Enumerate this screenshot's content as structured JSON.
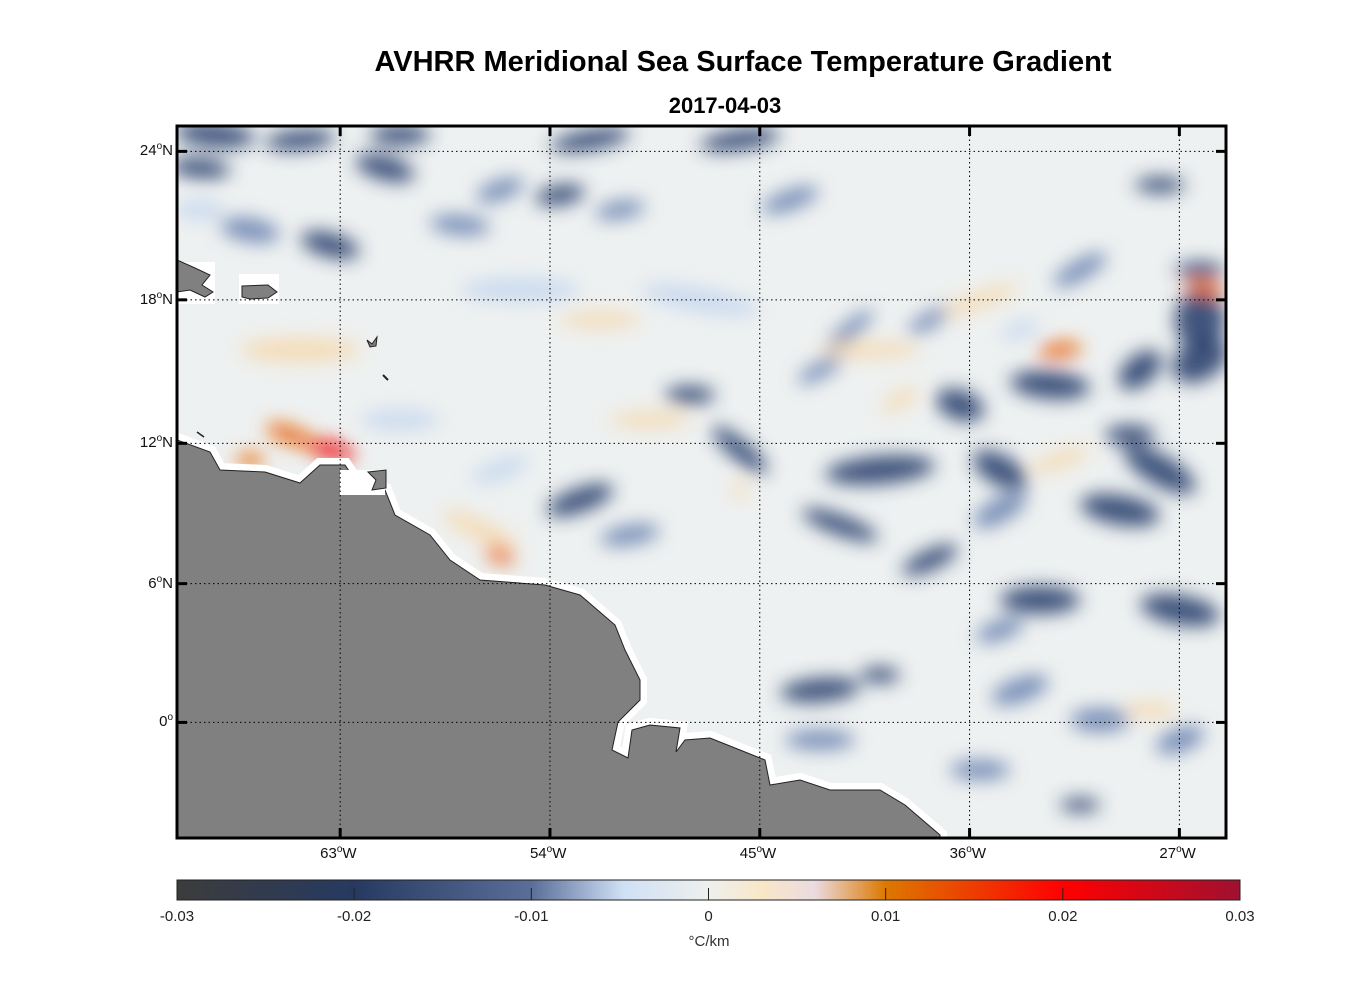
{
  "title": "AVHRR Meridional Sea Surface Temperature Gradient",
  "subtitle": "2017-04-03",
  "chart_data": {
    "type": "heatmap",
    "title": "AVHRR Meridional Sea Surface Temperature Gradient",
    "subtitle": "2017-04-03",
    "lon_range": [
      -70,
      -25
    ],
    "lat_range": [
      -5,
      25
    ],
    "lat_ticks": [
      {
        "value": 24,
        "deg": "24",
        "hemi": "N"
      },
      {
        "value": 18,
        "deg": "18",
        "hemi": "N"
      },
      {
        "value": 12,
        "deg": "12",
        "hemi": "N"
      },
      {
        "value": 6,
        "deg": "6",
        "hemi": "N"
      },
      {
        "value": 0,
        "deg": "0",
        "hemi": ""
      }
    ],
    "lon_ticks": [
      {
        "value": -63,
        "deg": "63",
        "hemi": "W"
      },
      {
        "value": -54,
        "deg": "54",
        "hemi": "W"
      },
      {
        "value": -45,
        "deg": "45",
        "hemi": "W"
      },
      {
        "value": -36,
        "deg": "36",
        "hemi": "W"
      },
      {
        "value": -27,
        "deg": "27",
        "hemi": "W"
      }
    ],
    "grid": true,
    "land_color": "#808080",
    "colorbar": {
      "location": "bottom",
      "range": [
        -0.03,
        0.03
      ],
      "ticks": [
        "-0.03",
        "-0.02",
        "-0.01",
        "0",
        "0.01",
        "0.02",
        "0.03"
      ],
      "label": "°C/km",
      "colors": [
        "#3c3c3c",
        "#263a61",
        "#5a6e98",
        "#cfe0f5",
        "#eef0ee",
        "#f9e7c8",
        "#eadbe0",
        "#dd7800",
        "#ff0000",
        "#a01030"
      ]
    }
  }
}
